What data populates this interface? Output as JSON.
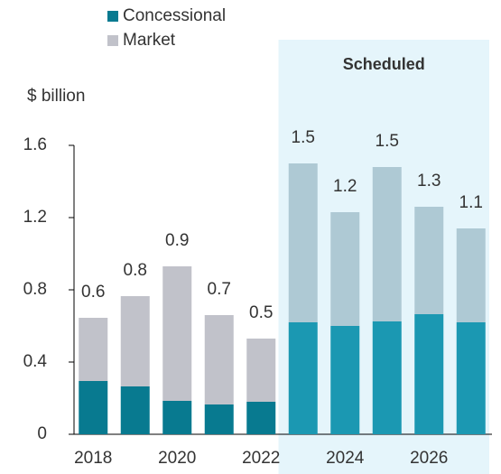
{
  "chart_data": {
    "type": "stacked_bar",
    "y_label": "$ billion",
    "categories": [
      "2018",
      null,
      "2020",
      null,
      "2022",
      null,
      "2024",
      null,
      "2026",
      null
    ],
    "series": [
      {
        "name": "Concessional",
        "color": "#087a90",
        "shaded_color": "#1b98b2",
        "values": [
          0.295,
          0.265,
          0.185,
          0.165,
          0.18,
          0.62,
          0.6,
          0.625,
          0.665,
          0.62
        ]
      },
      {
        "name": "Market",
        "color": "#c1c2ca",
        "shaded_color": "#aec9d4",
        "values": [
          0.35,
          0.5,
          0.745,
          0.495,
          0.35,
          0.88,
          0.63,
          0.855,
          0.595,
          0.52
        ]
      }
    ],
    "total_labels": [
      "0.6",
      "0.8",
      "0.9",
      "0.7",
      "0.5",
      "1.5",
      "1.2",
      "1.5",
      "1.3",
      "1.1"
    ],
    "shaded_region": {
      "label": "Scheduled",
      "start": 5,
      "color": "#e5f5fb"
    },
    "ylim": [
      0,
      1.6
    ],
    "yticks": [
      0,
      0.4,
      0.8,
      1.2,
      1.6
    ]
  }
}
